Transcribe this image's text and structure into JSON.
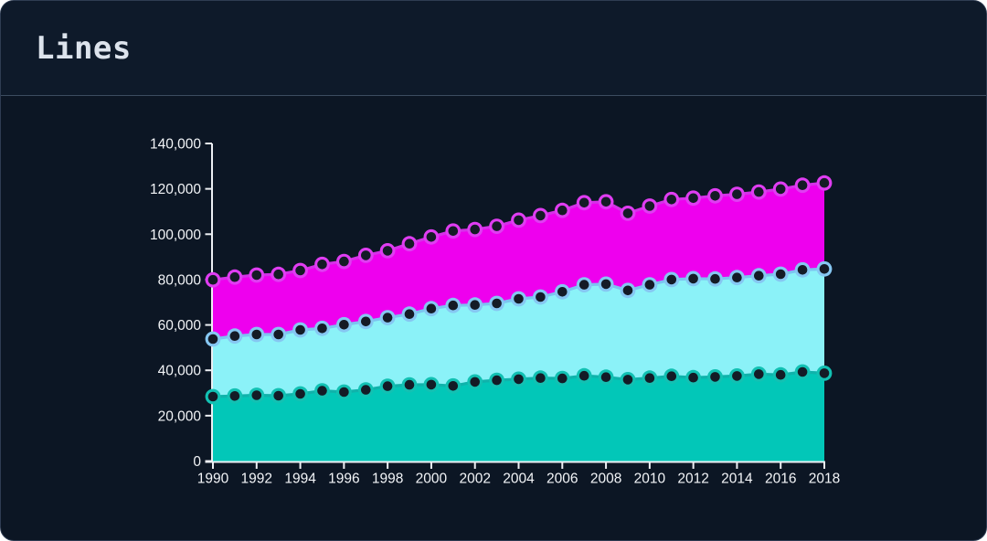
{
  "window": {
    "title": "Lines"
  },
  "colors": {
    "card_background": "#0c1624",
    "header_background": "#0e1a2a",
    "divider": "#3c4c60",
    "title_color": "#dce3ec",
    "axis_color": "#eceff3",
    "tick_label_color": "#f2f4f7"
  },
  "chart_data": {
    "type": "area",
    "title": "Lines",
    "xlabel": "",
    "ylabel": "",
    "grid": false,
    "legend_position": "none",
    "xlim": [
      1990,
      2018
    ],
    "ylim": [
      0,
      140000
    ],
    "x_ticks": [
      1990,
      1992,
      1994,
      1996,
      1998,
      2000,
      2002,
      2004,
      2006,
      2008,
      2010,
      2012,
      2014,
      2016,
      2018
    ],
    "x_tick_labels": [
      "1990",
      "1992",
      "1994",
      "1996",
      "1998",
      "2000",
      "2002",
      "2004",
      "2006",
      "2008",
      "2010",
      "2012",
      "2014",
      "2016",
      "2018"
    ],
    "y_ticks": [
      0,
      20000,
      40000,
      60000,
      80000,
      100000,
      120000,
      140000
    ],
    "y_tick_labels": [
      "0",
      "20,000",
      "40,000",
      "60,000",
      "80,000",
      "100,000",
      "120,000",
      "140,000"
    ],
    "x": [
      1990,
      1991,
      1992,
      1993,
      1994,
      1995,
      1996,
      1997,
      1998,
      1999,
      2000,
      2001,
      2002,
      2003,
      2004,
      2005,
      2006,
      2007,
      2008,
      2009,
      2010,
      2011,
      2012,
      2013,
      2014,
      2015,
      2016,
      2017,
      2018
    ],
    "dot_fill": "#141b26",
    "series": [
      {
        "name": "series-magenta",
        "area_color": "#ee00ee",
        "line_color": "#d630e8",
        "halo_color": "#e03df2",
        "values": [
          79900,
          81100,
          82000,
          82300,
          84000,
          86700,
          88000,
          90700,
          92700,
          95800,
          98800,
          101400,
          102100,
          103500,
          106200,
          108200,
          110500,
          113900,
          114300,
          109200,
          112400,
          115300,
          115900,
          116900,
          117600,
          118600,
          119900,
          121600,
          122600
        ]
      },
      {
        "name": "series-cyan",
        "area_color": "#8bf2f8",
        "line_color": "#7cc3f0",
        "halo_color": "#86c7f2",
        "values": [
          53800,
          55100,
          55800,
          55800,
          57800,
          58500,
          60100,
          61500,
          63200,
          64800,
          67200,
          68600,
          68800,
          69500,
          71500,
          72300,
          74600,
          77700,
          78000,
          75200,
          77700,
          80000,
          80400,
          80300,
          80900,
          81700,
          82400,
          84300,
          84700
        ]
      },
      {
        "name": "series-teal",
        "area_color": "#02c7b8",
        "line_color": "#0fb3ab",
        "halo_color": "#12c1b3",
        "values": [
          28400,
          28700,
          29000,
          28800,
          29600,
          31000,
          30400,
          31400,
          33000,
          33600,
          33700,
          33100,
          34900,
          35600,
          36100,
          36600,
          36400,
          37600,
          37000,
          35900,
          36600,
          37400,
          36800,
          37100,
          37500,
          38300,
          38000,
          39300,
          38700
        ]
      }
    ]
  }
}
